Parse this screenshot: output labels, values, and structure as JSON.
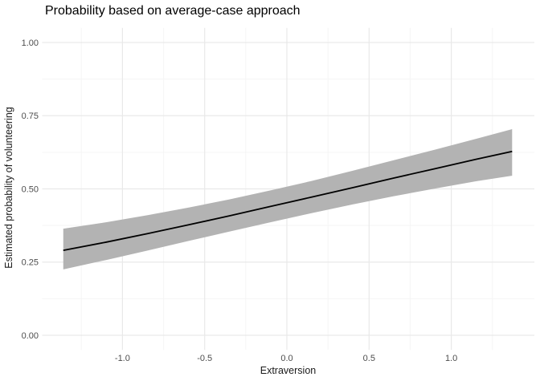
{
  "chart_data": {
    "type": "line",
    "title": "Probability based on average-case approach",
    "xlabel": "Extraversion",
    "ylabel": "Estimated probability of volunteering",
    "legend_position": "none",
    "grid": true,
    "xlim": [
      -1.4883,
      1.5054
    ],
    "ylim": [
      -0.05,
      1.05
    ],
    "x_ticks": {
      "values": [
        -1.0,
        -0.5,
        0.0,
        0.5,
        1.0
      ],
      "labels": [
        "-1.0",
        "-0.5",
        "0.0",
        "0.5",
        "1.0"
      ]
    },
    "y_ticks": {
      "values": [
        0.0,
        0.25,
        0.5,
        0.75,
        1.0
      ],
      "labels": [
        "0.00",
        "0.25",
        "0.50",
        "0.75",
        "1.00"
      ]
    },
    "x_minor": [
      -1.25,
      -0.75,
      -0.25,
      0.25,
      0.75,
      1.25
    ],
    "y_minor": [
      0.125,
      0.375,
      0.625,
      0.875
    ],
    "series": [
      {
        "name": "predicted-probability",
        "type": "line-with-confidence-band",
        "x": [
          -1.36,
          -1.1,
          -0.85,
          -0.6,
          -0.35,
          -0.1,
          0.15,
          0.4,
          0.65,
          0.9,
          1.15,
          1.37
        ],
        "y": [
          0.29,
          0.318,
          0.347,
          0.377,
          0.408,
          0.44,
          0.472,
          0.504,
          0.537,
          0.569,
          0.601,
          0.628
        ],
        "ymin": [
          0.225,
          0.257,
          0.289,
          0.322,
          0.354,
          0.386,
          0.417,
          0.447,
          0.475,
          0.501,
          0.526,
          0.545
        ],
        "ymax": [
          0.364,
          0.386,
          0.41,
          0.436,
          0.464,
          0.495,
          0.527,
          0.562,
          0.598,
          0.634,
          0.671,
          0.704
        ]
      }
    ],
    "colors": {
      "line": "#000000",
      "ribbon": "#b3b3b3",
      "grid_major": "#e9e9e9",
      "grid_minor": "#f5f5f5",
      "tick_label": "#4d4d4d",
      "title": "#000000",
      "axis_title": "#1a1a1a",
      "background": "#ffffff"
    }
  }
}
